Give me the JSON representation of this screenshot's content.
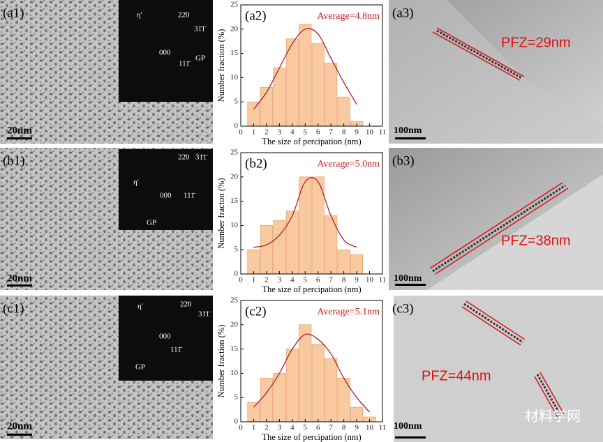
{
  "chart_data": [
    {
      "type": "bar",
      "title": "(a2)",
      "annotation": "Average=4.8nm",
      "xlabel": "The size of percipation (nm)",
      "ylabel": "Number fraction (%)",
      "x": [
        1,
        2,
        3,
        4,
        5,
        6,
        7,
        8,
        9
      ],
      "values": [
        5,
        8,
        12,
        18,
        21,
        17,
        13,
        6,
        1
      ],
      "color": "#f9c9a0",
      "fit": {
        "x": [
          1,
          2,
          3,
          4,
          5,
          6,
          7,
          8,
          9
        ],
        "values": [
          3.5,
          7,
          12,
          17,
          20,
          19,
          14,
          9,
          4.5
        ],
        "color": "#b0202a"
      },
      "xlim": [
        0,
        11
      ],
      "xticks": [
        0,
        1,
        2,
        3,
        4,
        5,
        6,
        7,
        8,
        9,
        10,
        11
      ],
      "ylim": [
        0,
        25
      ],
      "yticks": [
        0,
        5,
        10,
        15,
        20,
        25
      ]
    },
    {
      "type": "bar",
      "title": "(b2)",
      "annotation": "Average=5.0nm",
      "xlabel": "The size of percipation (nm)",
      "ylabel": "Number fracton (%)",
      "x": [
        1,
        2,
        3,
        4,
        5,
        6,
        7,
        8,
        9
      ],
      "values": [
        5,
        10,
        11,
        13,
        20,
        20,
        12,
        5,
        4
      ],
      "color": "#f9c9a0",
      "fit": {
        "x": [
          1,
          2,
          3,
          4,
          5,
          6,
          7,
          8,
          9
        ],
        "values": [
          5.5,
          6,
          8,
          12,
          19,
          19,
          12,
          7,
          5.5
        ],
        "color": "#b0202a"
      },
      "xlim": [
        0,
        11
      ],
      "xticks": [
        0,
        1,
        2,
        3,
        4,
        5,
        6,
        7,
        8,
        9,
        10,
        11
      ],
      "ylim": [
        0,
        25
      ],
      "yticks": [
        0,
        5,
        10,
        15,
        20,
        25
      ]
    },
    {
      "type": "bar",
      "title": "(c2)",
      "annotation": "Average=5.1nm",
      "xlabel": "The size of percipation (nm)",
      "ylabel": "Number fraction (%)",
      "x": [
        1,
        2,
        3,
        4,
        5,
        6,
        7,
        8,
        9,
        10
      ],
      "values": [
        4,
        9,
        10,
        15,
        20,
        16,
        13,
        9,
        3,
        1
      ],
      "color": "#f9c9a0",
      "fit": {
        "x": [
          1,
          2,
          3,
          4,
          5,
          6,
          7,
          8,
          9,
          10
        ],
        "values": [
          3,
          6,
          10,
          15,
          18,
          17,
          14,
          9,
          5,
          2
        ],
        "color": "#b0202a"
      },
      "xlim": [
        0,
        11
      ],
      "xticks": [
        0,
        1,
        2,
        3,
        4,
        5,
        6,
        7,
        8,
        9,
        10,
        11
      ],
      "ylim": [
        0,
        25
      ],
      "yticks": [
        0,
        5,
        10,
        15,
        20,
        25
      ]
    }
  ],
  "micrographs": [
    {
      "label": "(a1)",
      "scale": "20nm",
      "diffraction": [
        "η'",
        "22̄0",
        "31̄1̄",
        "000",
        "111̄",
        "GP"
      ]
    },
    {
      "label": "(b1)",
      "scale": "20nm",
      "diffraction": [
        "η'",
        "22̄0",
        "31̄1̄",
        "000",
        "111̄",
        "GP"
      ]
    },
    {
      "label": "(c1)",
      "scale": "20nm",
      "diffraction": [
        "η'",
        "22̄0",
        "31̄1̄",
        "000",
        "111̄",
        "GP"
      ]
    }
  ],
  "tem": [
    {
      "label": "(a3)",
      "scale": "100nm",
      "pfz": "PFZ=29nm"
    },
    {
      "label": "(b3)",
      "scale": "100nm",
      "pfz": "PFZ=38nm"
    },
    {
      "label": "(c3)",
      "scale": "100nm",
      "pfz": "PFZ=44nm"
    }
  ],
  "watermark": "材料学网"
}
